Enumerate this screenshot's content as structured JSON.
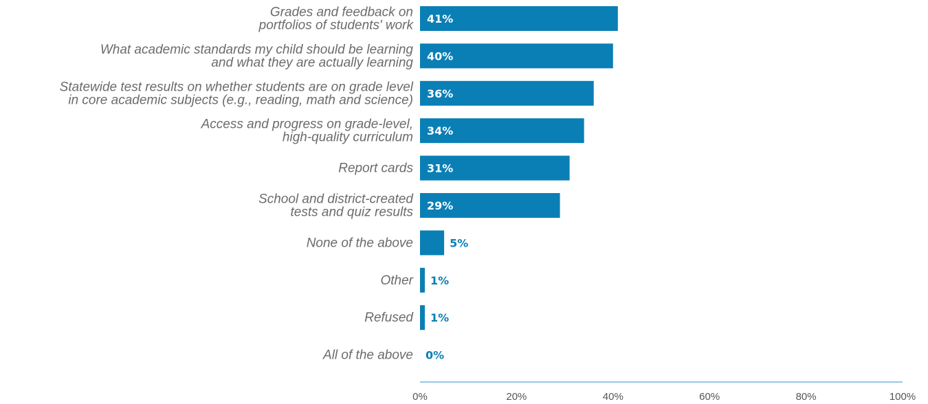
{
  "chart_data": {
    "type": "bar",
    "orientation": "horizontal",
    "categories": [
      [
        "Grades and feedback on",
        "portfolios of students' work"
      ],
      [
        "What academic standards my child should be learning",
        "and what they are actually learning"
      ],
      [
        "Statewide test results on whether students are on grade level",
        "in core academic subjects (e.g., reading, math and science)"
      ],
      [
        "Access and progress on grade-level,",
        "high-quality curriculum"
      ],
      [
        "Report cards"
      ],
      [
        "School and district-created",
        "tests and quiz results"
      ],
      [
        "None of the above"
      ],
      [
        "Other"
      ],
      [
        "Refused"
      ],
      [
        "All of the above"
      ]
    ],
    "values": [
      41,
      40,
      36,
      34,
      31,
      29,
      5,
      1,
      1,
      0
    ],
    "value_labels": [
      "41%",
      "40%",
      "36%",
      "34%",
      "31%",
      "29%",
      "5%",
      "1%",
      "1%",
      "0%"
    ],
    "xlim": [
      0,
      100
    ],
    "x_ticks": [
      "0%",
      "20%",
      "40%",
      "60%",
      "80%",
      "100%"
    ],
    "bar_color": "#0a7fb5",
    "axis_color": "#6fb6de",
    "grid": false
  }
}
